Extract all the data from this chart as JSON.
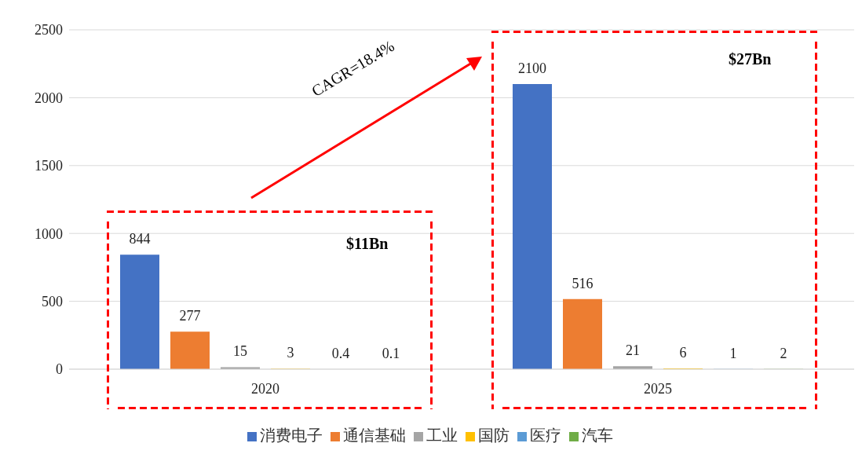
{
  "chart_data": {
    "type": "bar",
    "categories": [
      "2020",
      "2025"
    ],
    "series": [
      {
        "name": "消费电子",
        "color": "#4472c4",
        "values": [
          844,
          2100
        ]
      },
      {
        "name": "通信基础",
        "color": "#ed7d31",
        "values": [
          277,
          516
        ]
      },
      {
        "name": "工业",
        "color": "#a5a5a5",
        "values": [
          15,
          21
        ]
      },
      {
        "name": "国防",
        "color": "#ffc000",
        "values": [
          3,
          6
        ]
      },
      {
        "name": "医疗",
        "color": "#5b9bd5",
        "values": [
          0.4,
          1
        ]
      },
      {
        "name": "汽车",
        "color": "#70ad47",
        "values": [
          0.1,
          2
        ]
      }
    ],
    "ylim": [
      0,
      2500
    ],
    "yticks": [
      0,
      500,
      1000,
      1500,
      2000,
      2500
    ],
    "grid": "y",
    "legend": "bottom",
    "data_labels": true,
    "annotations": [
      "CAGR=18.4%",
      "$11Bn",
      "$27Bn"
    ]
  }
}
